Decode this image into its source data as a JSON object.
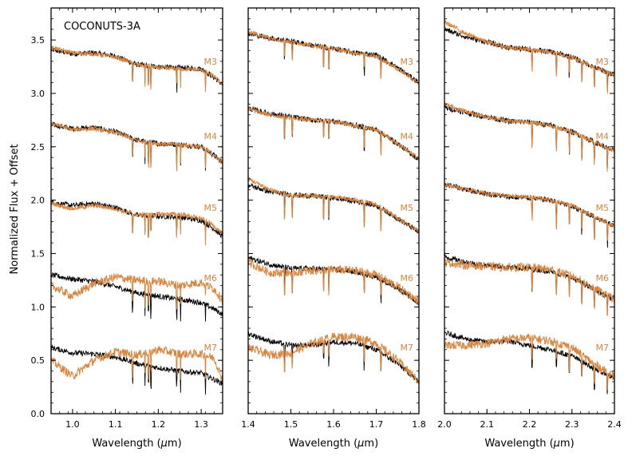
{
  "colors": {
    "object": "#000000",
    "standard": "#d9853f",
    "frame": "#000000",
    "background": "#ffffff"
  },
  "figure": {
    "ylabel": "Normalized Flux + Offset",
    "title": "COCONUTS-3A"
  },
  "chart_data": [
    {
      "type": "line",
      "panel": "left",
      "title": "COCONUTS-3A",
      "xlabel": "Wavelength (μm)",
      "ylabel": "Normalized Flux + Offset",
      "xlim": [
        0.95,
        1.35
      ],
      "ylim": [
        0.0,
        3.8
      ],
      "xticks": [
        "1.0",
        "1.1",
        "1.2",
        "1.3"
      ],
      "xtick_values": [
        1.0,
        1.1,
        1.2,
        1.3
      ],
      "yticks": [
        "0.0",
        "0.5",
        "1.0",
        "1.5",
        "2.0",
        "2.5",
        "3.0",
        "3.5"
      ],
      "ytick_values": [
        0.0,
        0.5,
        1.0,
        1.5,
        2.0,
        2.5,
        3.0,
        3.5
      ],
      "grid": false,
      "standard_labels": [
        {
          "text": "M3",
          "y": 3.3
        },
        {
          "text": "M4",
          "y": 2.6
        },
        {
          "text": "M5",
          "y": 1.93
        },
        {
          "text": "M6",
          "y": 1.27
        },
        {
          "text": "M7",
          "y": 0.62
        }
      ],
      "series": [
        {
          "role": "object",
          "offset": 3.4,
          "x": [
            0.95,
            1.0,
            1.05,
            1.1,
            1.15,
            1.2,
            1.25,
            1.3,
            1.33,
            1.35
          ],
          "y": [
            3.41,
            3.37,
            3.38,
            3.35,
            3.27,
            3.25,
            3.24,
            3.23,
            3.15,
            3.08
          ]
        },
        {
          "role": "standard",
          "name": "M3",
          "offset": 3.4,
          "x": [
            0.95,
            1.0,
            1.05,
            1.1,
            1.15,
            1.2,
            1.25,
            1.3,
            1.33,
            1.35
          ],
          "y": [
            3.43,
            3.38,
            3.37,
            3.34,
            3.27,
            3.24,
            3.23,
            3.22,
            3.16,
            3.08
          ]
        },
        {
          "role": "object",
          "offset": 2.7,
          "x": [
            0.95,
            1.0,
            1.05,
            1.1,
            1.15,
            1.2,
            1.25,
            1.3,
            1.33,
            1.35
          ],
          "y": [
            2.71,
            2.67,
            2.68,
            2.64,
            2.56,
            2.53,
            2.52,
            2.5,
            2.42,
            2.35
          ]
        },
        {
          "role": "standard",
          "name": "M4",
          "offset": 2.7,
          "x": [
            0.95,
            1.0,
            1.05,
            1.1,
            1.15,
            1.2,
            1.25,
            1.3,
            1.33,
            1.35
          ],
          "y": [
            2.72,
            2.66,
            2.67,
            2.63,
            2.56,
            2.53,
            2.52,
            2.5,
            2.42,
            2.35
          ]
        },
        {
          "role": "object",
          "offset": 2.0,
          "x": [
            0.95,
            1.0,
            1.05,
            1.1,
            1.15,
            1.2,
            1.25,
            1.3,
            1.33,
            1.35
          ],
          "y": [
            1.98,
            1.95,
            1.97,
            1.93,
            1.86,
            1.85,
            1.84,
            1.81,
            1.73,
            1.66
          ]
        },
        {
          "role": "standard",
          "name": "M5",
          "offset": 2.0,
          "x": [
            0.95,
            1.0,
            1.05,
            1.1,
            1.15,
            1.2,
            1.25,
            1.3,
            1.33,
            1.35
          ],
          "y": [
            1.97,
            1.92,
            1.95,
            1.92,
            1.86,
            1.87,
            1.87,
            1.83,
            1.76,
            1.68
          ]
        },
        {
          "role": "object",
          "offset": 1.3,
          "x": [
            0.95,
            1.0,
            1.05,
            1.1,
            1.15,
            1.2,
            1.25,
            1.3,
            1.33,
            1.35
          ],
          "y": [
            1.3,
            1.26,
            1.24,
            1.19,
            1.13,
            1.1,
            1.07,
            1.04,
            0.98,
            0.93
          ]
        },
        {
          "role": "standard",
          "name": "M6",
          "offset": 1.3,
          "x": [
            0.95,
            1.0,
            1.05,
            1.1,
            1.15,
            1.2,
            1.25,
            1.3,
            1.33,
            1.35
          ],
          "y": [
            1.2,
            1.1,
            1.22,
            1.28,
            1.25,
            1.24,
            1.2,
            1.23,
            1.17,
            1.06
          ]
        },
        {
          "role": "object",
          "offset": 0.6,
          "x": [
            0.95,
            1.0,
            1.05,
            1.1,
            1.15,
            1.2,
            1.25,
            1.3,
            1.33,
            1.35
          ],
          "y": [
            0.62,
            0.57,
            0.56,
            0.53,
            0.47,
            0.43,
            0.4,
            0.38,
            0.32,
            0.28
          ]
        },
        {
          "role": "standard",
          "name": "M7",
          "offset": 0.6,
          "x": [
            0.95,
            1.0,
            1.05,
            1.1,
            1.15,
            1.2,
            1.25,
            1.3,
            1.33,
            1.35
          ],
          "y": [
            0.5,
            0.35,
            0.5,
            0.58,
            0.55,
            0.6,
            0.56,
            0.56,
            0.52,
            0.32
          ]
        }
      ]
    },
    {
      "type": "line",
      "panel": "middle",
      "xlabel": "Wavelength (μm)",
      "xlim": [
        1.4,
        1.8
      ],
      "ylim": [
        0.0,
        3.8
      ],
      "xticks": [
        "1.4",
        "1.5",
        "1.6",
        "1.7",
        "1.8"
      ],
      "xtick_values": [
        1.4,
        1.5,
        1.6,
        1.7,
        1.8
      ],
      "grid": false,
      "standard_labels": [
        {
          "text": "M3",
          "y": 3.3
        },
        {
          "text": "M4",
          "y": 2.6
        },
        {
          "text": "M5",
          "y": 1.93
        },
        {
          "text": "M6",
          "y": 1.27
        },
        {
          "text": "M7",
          "y": 0.62
        }
      ],
      "series": [
        {
          "role": "object",
          "offset": 3.4,
          "x": [
            1.4,
            1.45,
            1.5,
            1.55,
            1.6,
            1.65,
            1.7,
            1.75,
            1.8
          ],
          "y": [
            3.56,
            3.52,
            3.49,
            3.45,
            3.42,
            3.38,
            3.36,
            3.24,
            3.1
          ]
        },
        {
          "role": "standard",
          "name": "M3",
          "offset": 3.4,
          "x": [
            1.4,
            1.45,
            1.5,
            1.55,
            1.6,
            1.65,
            1.7,
            1.75,
            1.8
          ],
          "y": [
            3.58,
            3.52,
            3.48,
            3.45,
            3.42,
            3.38,
            3.35,
            3.23,
            3.1
          ]
        },
        {
          "role": "object",
          "offset": 2.7,
          "x": [
            1.4,
            1.45,
            1.5,
            1.55,
            1.6,
            1.65,
            1.7,
            1.75,
            1.8
          ],
          "y": [
            2.86,
            2.81,
            2.78,
            2.75,
            2.74,
            2.7,
            2.66,
            2.53,
            2.38
          ]
        },
        {
          "role": "standard",
          "name": "M4",
          "offset": 2.7,
          "x": [
            1.4,
            1.45,
            1.5,
            1.55,
            1.6,
            1.65,
            1.7,
            1.75,
            1.8
          ],
          "y": [
            2.85,
            2.8,
            2.77,
            2.75,
            2.74,
            2.7,
            2.66,
            2.53,
            2.39
          ]
        },
        {
          "role": "object",
          "offset": 2.0,
          "x": [
            1.4,
            1.45,
            1.5,
            1.55,
            1.6,
            1.65,
            1.7,
            1.75,
            1.8
          ],
          "y": [
            2.14,
            2.08,
            2.05,
            2.04,
            2.02,
            1.99,
            1.95,
            1.83,
            1.7
          ]
        },
        {
          "role": "standard",
          "name": "M5",
          "offset": 2.0,
          "x": [
            1.4,
            1.45,
            1.5,
            1.55,
            1.6,
            1.65,
            1.7,
            1.75,
            1.8
          ],
          "y": [
            2.2,
            2.1,
            2.04,
            2.04,
            2.03,
            2.0,
            1.96,
            1.83,
            1.71
          ]
        },
        {
          "role": "object",
          "offset": 1.3,
          "x": [
            1.4,
            1.45,
            1.5,
            1.55,
            1.6,
            1.65,
            1.7,
            1.75,
            1.8
          ],
          "y": [
            1.46,
            1.4,
            1.36,
            1.36,
            1.35,
            1.33,
            1.28,
            1.18,
            1.03
          ]
        },
        {
          "role": "standard",
          "name": "M6",
          "offset": 1.3,
          "x": [
            1.4,
            1.45,
            1.5,
            1.55,
            1.6,
            1.65,
            1.7,
            1.75,
            1.8
          ],
          "y": [
            1.42,
            1.32,
            1.32,
            1.34,
            1.35,
            1.34,
            1.3,
            1.19,
            1.05
          ]
        },
        {
          "role": "object",
          "offset": 0.6,
          "x": [
            1.4,
            1.45,
            1.5,
            1.55,
            1.6,
            1.65,
            1.7,
            1.75,
            1.8
          ],
          "y": [
            0.75,
            0.68,
            0.64,
            0.64,
            0.67,
            0.66,
            0.6,
            0.47,
            0.3
          ]
        },
        {
          "role": "standard",
          "name": "M7",
          "offset": 0.6,
          "x": [
            1.4,
            1.45,
            1.5,
            1.55,
            1.6,
            1.65,
            1.7,
            1.75,
            1.8
          ],
          "y": [
            0.62,
            0.55,
            0.57,
            0.66,
            0.72,
            0.72,
            0.66,
            0.5,
            0.3
          ]
        }
      ]
    },
    {
      "type": "line",
      "panel": "right",
      "xlabel": "Wavelength (μm)",
      "xlim": [
        2.0,
        2.4
      ],
      "ylim": [
        0.0,
        3.8
      ],
      "xticks": [
        "2.0",
        "2.1",
        "2.2",
        "2.3",
        "2.4"
      ],
      "xtick_values": [
        2.0,
        2.1,
        2.2,
        2.3,
        2.4
      ],
      "grid": false,
      "standard_labels": [
        {
          "text": "M3",
          "y": 3.3
        },
        {
          "text": "M4",
          "y": 2.6
        },
        {
          "text": "M5",
          "y": 1.93
        },
        {
          "text": "M6",
          "y": 1.27
        },
        {
          "text": "M7",
          "y": 0.62
        }
      ],
      "series": [
        {
          "role": "object",
          "offset": 3.4,
          "x": [
            2.0,
            2.05,
            2.1,
            2.15,
            2.2,
            2.25,
            2.3,
            2.35,
            2.4
          ],
          "y": [
            3.6,
            3.53,
            3.48,
            3.43,
            3.41,
            3.39,
            3.34,
            3.25,
            3.17
          ]
        },
        {
          "role": "standard",
          "name": "M3",
          "offset": 3.4,
          "x": [
            2.0,
            2.05,
            2.1,
            2.15,
            2.2,
            2.25,
            2.3,
            2.35,
            2.4
          ],
          "y": [
            3.67,
            3.56,
            3.48,
            3.43,
            3.41,
            3.39,
            3.34,
            3.25,
            3.17
          ]
        },
        {
          "role": "object",
          "offset": 2.7,
          "x": [
            2.0,
            2.05,
            2.1,
            2.15,
            2.2,
            2.25,
            2.3,
            2.35,
            2.4
          ],
          "y": [
            2.87,
            2.82,
            2.78,
            2.74,
            2.73,
            2.7,
            2.64,
            2.55,
            2.46
          ]
        },
        {
          "role": "standard",
          "name": "M4",
          "offset": 2.7,
          "x": [
            2.0,
            2.05,
            2.1,
            2.15,
            2.2,
            2.25,
            2.3,
            2.35,
            2.4
          ],
          "y": [
            2.9,
            2.83,
            2.78,
            2.74,
            2.73,
            2.7,
            2.64,
            2.55,
            2.46
          ]
        },
        {
          "role": "object",
          "offset": 2.0,
          "x": [
            2.0,
            2.05,
            2.1,
            2.15,
            2.2,
            2.25,
            2.3,
            2.35,
            2.4
          ],
          "y": [
            2.15,
            2.1,
            2.06,
            2.03,
            2.02,
            2.0,
            1.94,
            1.85,
            1.76
          ]
        },
        {
          "role": "standard",
          "name": "M5",
          "offset": 2.0,
          "x": [
            2.0,
            2.05,
            2.1,
            2.15,
            2.2,
            2.25,
            2.3,
            2.35,
            2.4
          ],
          "y": [
            2.15,
            2.1,
            2.06,
            2.04,
            2.03,
            2.0,
            1.95,
            1.85,
            1.76
          ]
        },
        {
          "role": "object",
          "offset": 1.3,
          "x": [
            2.0,
            2.05,
            2.1,
            2.15,
            2.2,
            2.25,
            2.3,
            2.35,
            2.4
          ],
          "y": [
            1.47,
            1.42,
            1.39,
            1.37,
            1.36,
            1.33,
            1.27,
            1.17,
            1.06
          ]
        },
        {
          "role": "standard",
          "name": "M6",
          "offset": 1.3,
          "x": [
            2.0,
            2.05,
            2.1,
            2.15,
            2.2,
            2.25,
            2.3,
            2.35,
            2.4
          ],
          "y": [
            1.42,
            1.39,
            1.38,
            1.37,
            1.37,
            1.35,
            1.29,
            1.18,
            1.07
          ]
        },
        {
          "role": "object",
          "offset": 0.6,
          "x": [
            2.0,
            2.05,
            2.1,
            2.15,
            2.2,
            2.25,
            2.3,
            2.35,
            2.4
          ],
          "y": [
            0.76,
            0.7,
            0.67,
            0.68,
            0.64,
            0.6,
            0.54,
            0.43,
            0.33
          ]
        },
        {
          "role": "standard",
          "name": "M7",
          "offset": 0.6,
          "x": [
            2.0,
            2.05,
            2.1,
            2.15,
            2.2,
            2.25,
            2.3,
            2.35,
            2.4
          ],
          "y": [
            0.64,
            0.64,
            0.66,
            0.7,
            0.71,
            0.68,
            0.62,
            0.47,
            0.35
          ]
        }
      ]
    }
  ]
}
